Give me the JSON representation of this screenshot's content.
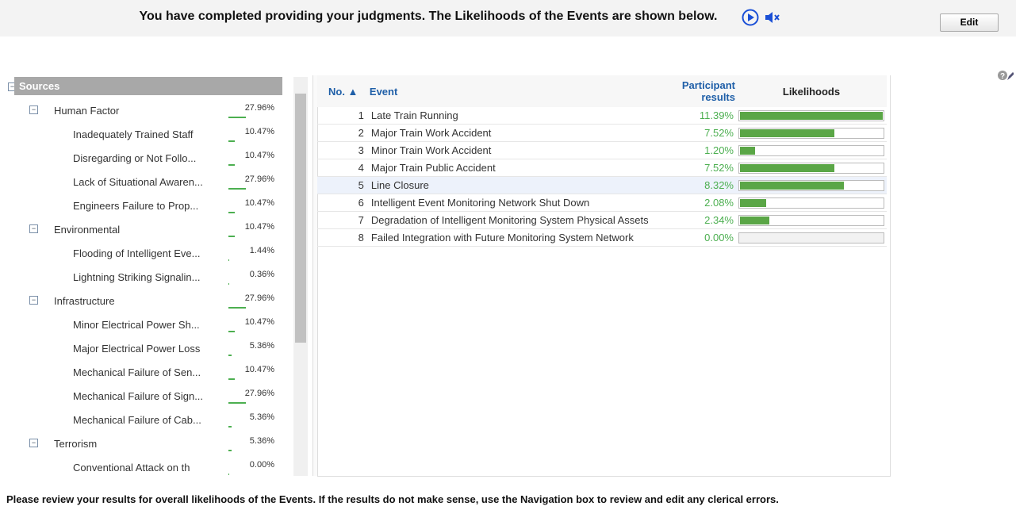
{
  "header": {
    "title": "You have completed providing your judgments. The Likelihoods of the Events are shown below.",
    "edit_button": "Edit"
  },
  "tree": {
    "root": "Sources",
    "nodes": [
      {
        "label": "Human Factor",
        "level": 1,
        "value": 27.96,
        "value_label": "27.96%"
      },
      {
        "label": "Inadequately Trained Staff",
        "level": 2,
        "value": 10.47,
        "value_label": "10.47%"
      },
      {
        "label": "Disregarding or Not Follo...",
        "level": 2,
        "value": 10.47,
        "value_label": "10.47%"
      },
      {
        "label": "Lack of Situational Awaren...",
        "level": 2,
        "value": 27.96,
        "value_label": "27.96%"
      },
      {
        "label": "Engineers Failure to Prop...",
        "level": 2,
        "value": 10.47,
        "value_label": "10.47%"
      },
      {
        "label": "Environmental",
        "level": 1,
        "value": 10.47,
        "value_label": "10.47%"
      },
      {
        "label": "Flooding of Intelligent Eve...",
        "level": 2,
        "value": 1.44,
        "value_label": "1.44%"
      },
      {
        "label": "Lightning Striking Signalin...",
        "level": 2,
        "value": 0.36,
        "value_label": "0.36%"
      },
      {
        "label": "Infrastructure",
        "level": 1,
        "value": 27.96,
        "value_label": "27.96%"
      },
      {
        "label": "Minor Electrical Power Sh...",
        "level": 2,
        "value": 10.47,
        "value_label": "10.47%"
      },
      {
        "label": "Major Electrical Power Loss",
        "level": 2,
        "value": 5.36,
        "value_label": "5.36%"
      },
      {
        "label": "Mechanical Failure of Sen...",
        "level": 2,
        "value": 10.47,
        "value_label": "10.47%"
      },
      {
        "label": "Mechanical Failure of Sign...",
        "level": 2,
        "value": 27.96,
        "value_label": "27.96%"
      },
      {
        "label": "Mechanical Failure of Cab...",
        "level": 2,
        "value": 5.36,
        "value_label": "5.36%"
      },
      {
        "label": "Terrorism",
        "level": 1,
        "value": 5.36,
        "value_label": "5.36%"
      },
      {
        "label": "Conventional Attack on th",
        "level": 2,
        "value": 0,
        "value_label": "0.00%"
      }
    ]
  },
  "table": {
    "headers": {
      "no": "No. ▲",
      "event": "Event",
      "results": "Participant results",
      "likelihoods": "Likelihoods"
    },
    "rows": [
      {
        "no": 1,
        "event": "Late Train Running",
        "value": 11.39,
        "value_label": "11.39%"
      },
      {
        "no": 2,
        "event": "Major Train Work Accident",
        "value": 7.52,
        "value_label": "7.52%"
      },
      {
        "no": 3,
        "event": "Minor Train Work Accident",
        "value": 1.2,
        "value_label": "1.20%"
      },
      {
        "no": 4,
        "event": "Major Train Public Accident",
        "value": 7.52,
        "value_label": "7.52%"
      },
      {
        "no": 5,
        "event": "Line Closure",
        "value": 8.32,
        "value_label": "8.32%"
      },
      {
        "no": 6,
        "event": "Intelligent Event Monitoring Network Shut Down",
        "value": 2.08,
        "value_label": "2.08%"
      },
      {
        "no": 7,
        "event": "Degradation of Intelligent Monitoring System Physical Assets",
        "value": 2.34,
        "value_label": "2.34%"
      },
      {
        "no": 8,
        "event": "Failed Integration with Future Monitoring System Network",
        "value": 0,
        "value_label": "0.00%"
      }
    ]
  },
  "footer": "Please review your results for overall likelihoods of the Events. If the results do not make sense, use the Navigation box to review and edit any clerical errors."
}
